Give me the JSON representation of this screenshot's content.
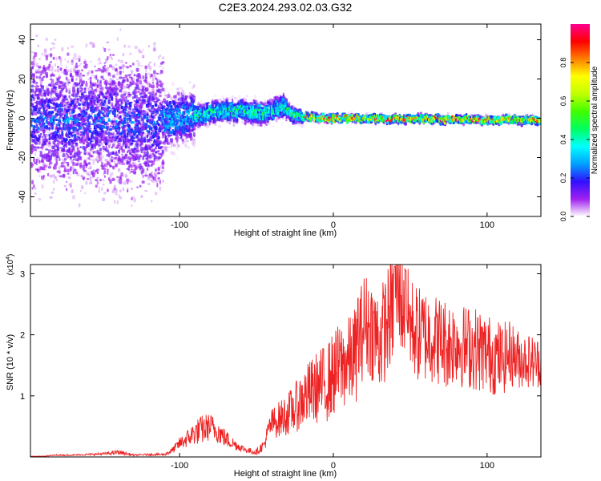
{
  "title": "C2E3.2024.293.02.03.G32",
  "chart_data": [
    {
      "type": "heatmap",
      "id": "spectrogram",
      "xlabel": "Height of straight line (km)",
      "ylabel": "Frequency (Hz)",
      "xlim": [
        -197,
        135
      ],
      "ylim": [
        -50,
        48
      ],
      "xticks": [
        -100,
        0,
        100
      ],
      "xtick_labels": [
        "-100",
        "0",
        "100"
      ],
      "yticks": [
        -40,
        -20,
        0,
        20,
        40
      ],
      "ytick_labels": [
        "-40",
        "-20",
        "0",
        "20",
        "40"
      ],
      "colorbar": {
        "label": "Normalized spectral amplitude",
        "range": [
          0,
          1
        ],
        "ticks": [
          0.0,
          0.2,
          0.4,
          0.6,
          0.8
        ],
        "tick_labels": [
          "0.0",
          "0.2",
          "0.4",
          "0.6",
          "0.8"
        ],
        "colors": [
          "#ffffff",
          "#a020f0",
          "#3010ff",
          "#00a0ff",
          "#00ffff",
          "#00ff60",
          "#40ff00",
          "#c0ff00",
          "#ffff00",
          "#ff8000",
          "#ff0000",
          "#ff0090"
        ]
      },
      "ridge": [
        {
          "x": -197,
          "y": 0
        },
        {
          "x": -150,
          "y": -1
        },
        {
          "x": -120,
          "y": -3
        },
        {
          "x": -100,
          "y": 0
        },
        {
          "x": -80,
          "y": 3
        },
        {
          "x": -60,
          "y": 4
        },
        {
          "x": -45,
          "y": 2
        },
        {
          "x": -33,
          "y": 6
        },
        {
          "x": -25,
          "y": 1
        },
        {
          "x": 0,
          "y": 0
        },
        {
          "x": 135,
          "y": -1
        }
      ]
    },
    {
      "type": "line",
      "id": "snr",
      "xlabel": "Height of straight line (km)",
      "ylabel": "SNR (10 * v/v)",
      "scale_label": "(x10",
      "scale_exp": "4",
      "scale_close": ")",
      "xlim": [
        -197,
        135
      ],
      "ylim": [
        0,
        3.15
      ],
      "xticks": [
        -100,
        0,
        100
      ],
      "xtick_labels": [
        "-100",
        "0",
        "100"
      ],
      "yticks": [
        1,
        2,
        3
      ],
      "ytick_labels": [
        "1",
        "2",
        "3"
      ],
      "line_color": "#ee2222",
      "series_x": [
        -197,
        -190,
        -180,
        -170,
        -160,
        -150,
        -145,
        -140,
        -130,
        -120,
        -110,
        -105,
        -100,
        -95,
        -90,
        -85,
        -80,
        -75,
        -70,
        -65,
        -60,
        -55,
        -50,
        -45,
        -42,
        -40,
        -35,
        -30,
        -25,
        -20,
        -15,
        -10,
        -5,
        0,
        5,
        10,
        15,
        20,
        25,
        30,
        35,
        40,
        42,
        45,
        50,
        55,
        60,
        65,
        70,
        75,
        80,
        85,
        90,
        95,
        100,
        105,
        110,
        115,
        120,
        125,
        130,
        135
      ],
      "series_y": [
        0.01,
        0.01,
        0.03,
        0.03,
        0.04,
        0.05,
        0.06,
        0.08,
        0.03,
        0.04,
        0.04,
        0.1,
        0.22,
        0.3,
        0.4,
        0.45,
        0.5,
        0.42,
        0.3,
        0.22,
        0.15,
        0.1,
        0.08,
        0.2,
        0.45,
        0.55,
        0.62,
        0.7,
        0.8,
        0.95,
        1.05,
        1.15,
        1.2,
        1.35,
        1.5,
        1.55,
        1.7,
        2.2,
        2.1,
        1.9,
        2.2,
        2.5,
        2.7,
        2.5,
        2.2,
        2.0,
        2.0,
        1.95,
        1.9,
        1.85,
        1.9,
        1.8,
        1.8,
        1.75,
        1.7,
        1.65,
        1.6,
        1.7,
        1.6,
        1.6,
        1.55,
        1.55
      ],
      "noise_amp": [
        0.005,
        0.005,
        0.01,
        0.01,
        0.015,
        0.02,
        0.03,
        0.04,
        0.015,
        0.015,
        0.02,
        0.05,
        0.1,
        0.15,
        0.2,
        0.25,
        0.22,
        0.2,
        0.15,
        0.1,
        0.06,
        0.05,
        0.05,
        0.1,
        0.2,
        0.25,
        0.3,
        0.35,
        0.4,
        0.5,
        0.55,
        0.6,
        0.65,
        0.7,
        0.75,
        0.75,
        0.8,
        0.85,
        0.85,
        0.85,
        0.9,
        0.9,
        0.9,
        0.85,
        0.8,
        0.8,
        0.8,
        0.75,
        0.75,
        0.75,
        0.7,
        0.7,
        0.7,
        0.7,
        0.65,
        0.65,
        0.6,
        0.55,
        0.5,
        0.45,
        0.45,
        0.4
      ],
      "peaks": [
        {
          "x": 40,
          "y": 3.12
        },
        {
          "x": 47,
          "y": 3.05
        },
        {
          "x": 16,
          "y": 2.6
        }
      ]
    }
  ]
}
